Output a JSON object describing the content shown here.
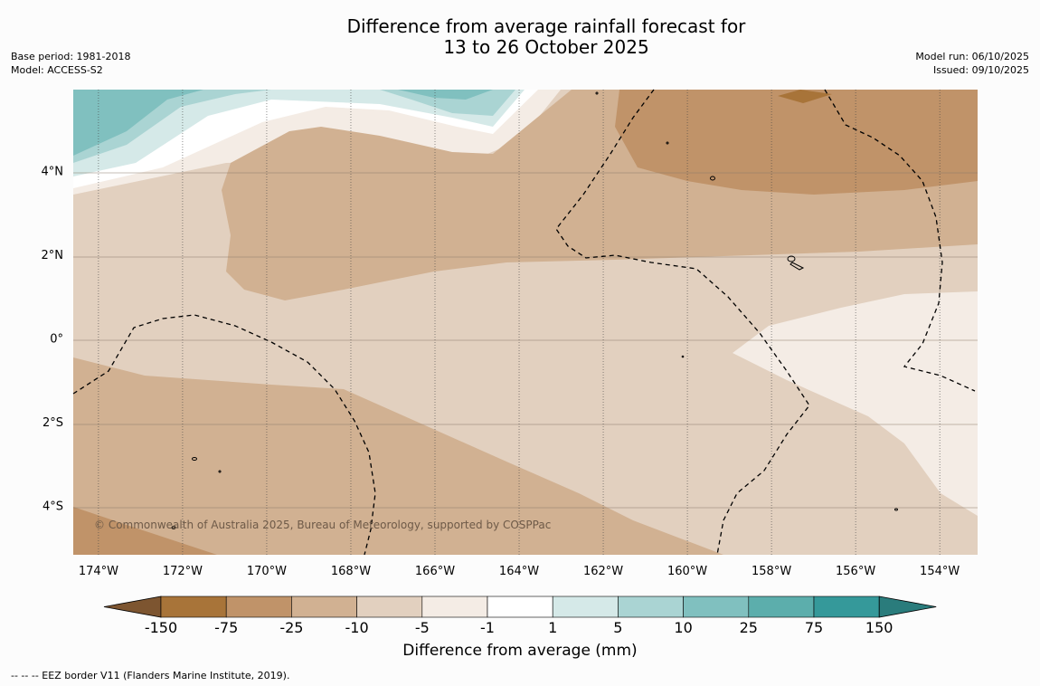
{
  "title": {
    "line1": "Difference from average rainfall forecast for",
    "line2": "13 to 26 October 2025"
  },
  "meta_left": {
    "base_period": "Base period: 1981-2018",
    "model": "Model: ACCESS-S2"
  },
  "meta_right": {
    "model_run": "Model run: 06/10/2025",
    "issued": "Issued: 09/10/2025"
  },
  "map": {
    "lat_labels": [
      "4°N",
      "2°N",
      "0°",
      "2°S",
      "4°S"
    ],
    "lat_values": [
      4,
      2,
      0,
      -2,
      -4
    ],
    "lon_labels": [
      "174°W",
      "172°W",
      "170°W",
      "168°W",
      "166°W",
      "164°W",
      "162°W",
      "160°W",
      "158°W",
      "156°W",
      "154°W"
    ],
    "lon_values": [
      -174,
      -172,
      -170,
      -168,
      -166,
      -164,
      -162,
      -160,
      -158,
      -156,
      -154
    ],
    "lon_range": [
      -174.6,
      -153.1
    ],
    "lat_range": [
      -5.15,
      5.95
    ],
    "copyright": "© Commonwealth of Australia 2025, Bureau of Meteorology, supported by COSPPac"
  },
  "colorbar": {
    "ticks": [
      "-150",
      "-75",
      "-25",
      "-10",
      "-5",
      "-1",
      "1",
      "5",
      "10",
      "25",
      "75",
      "150"
    ],
    "colors": [
      "#7d5530",
      "#a87439",
      "#c09369",
      "#d1b192",
      "#e2d0bf",
      "#f4ece5",
      "#ffffff",
      "#d5e9e8",
      "#aad4d3",
      "#80c0bf",
      "#5caeac",
      "#35999a",
      "#2a7c7c"
    ],
    "units_label": "Difference from average (mm)"
  },
  "footer": "--  --  -- EEZ border V11 (Flanders Marine Institute, 2019)."
}
